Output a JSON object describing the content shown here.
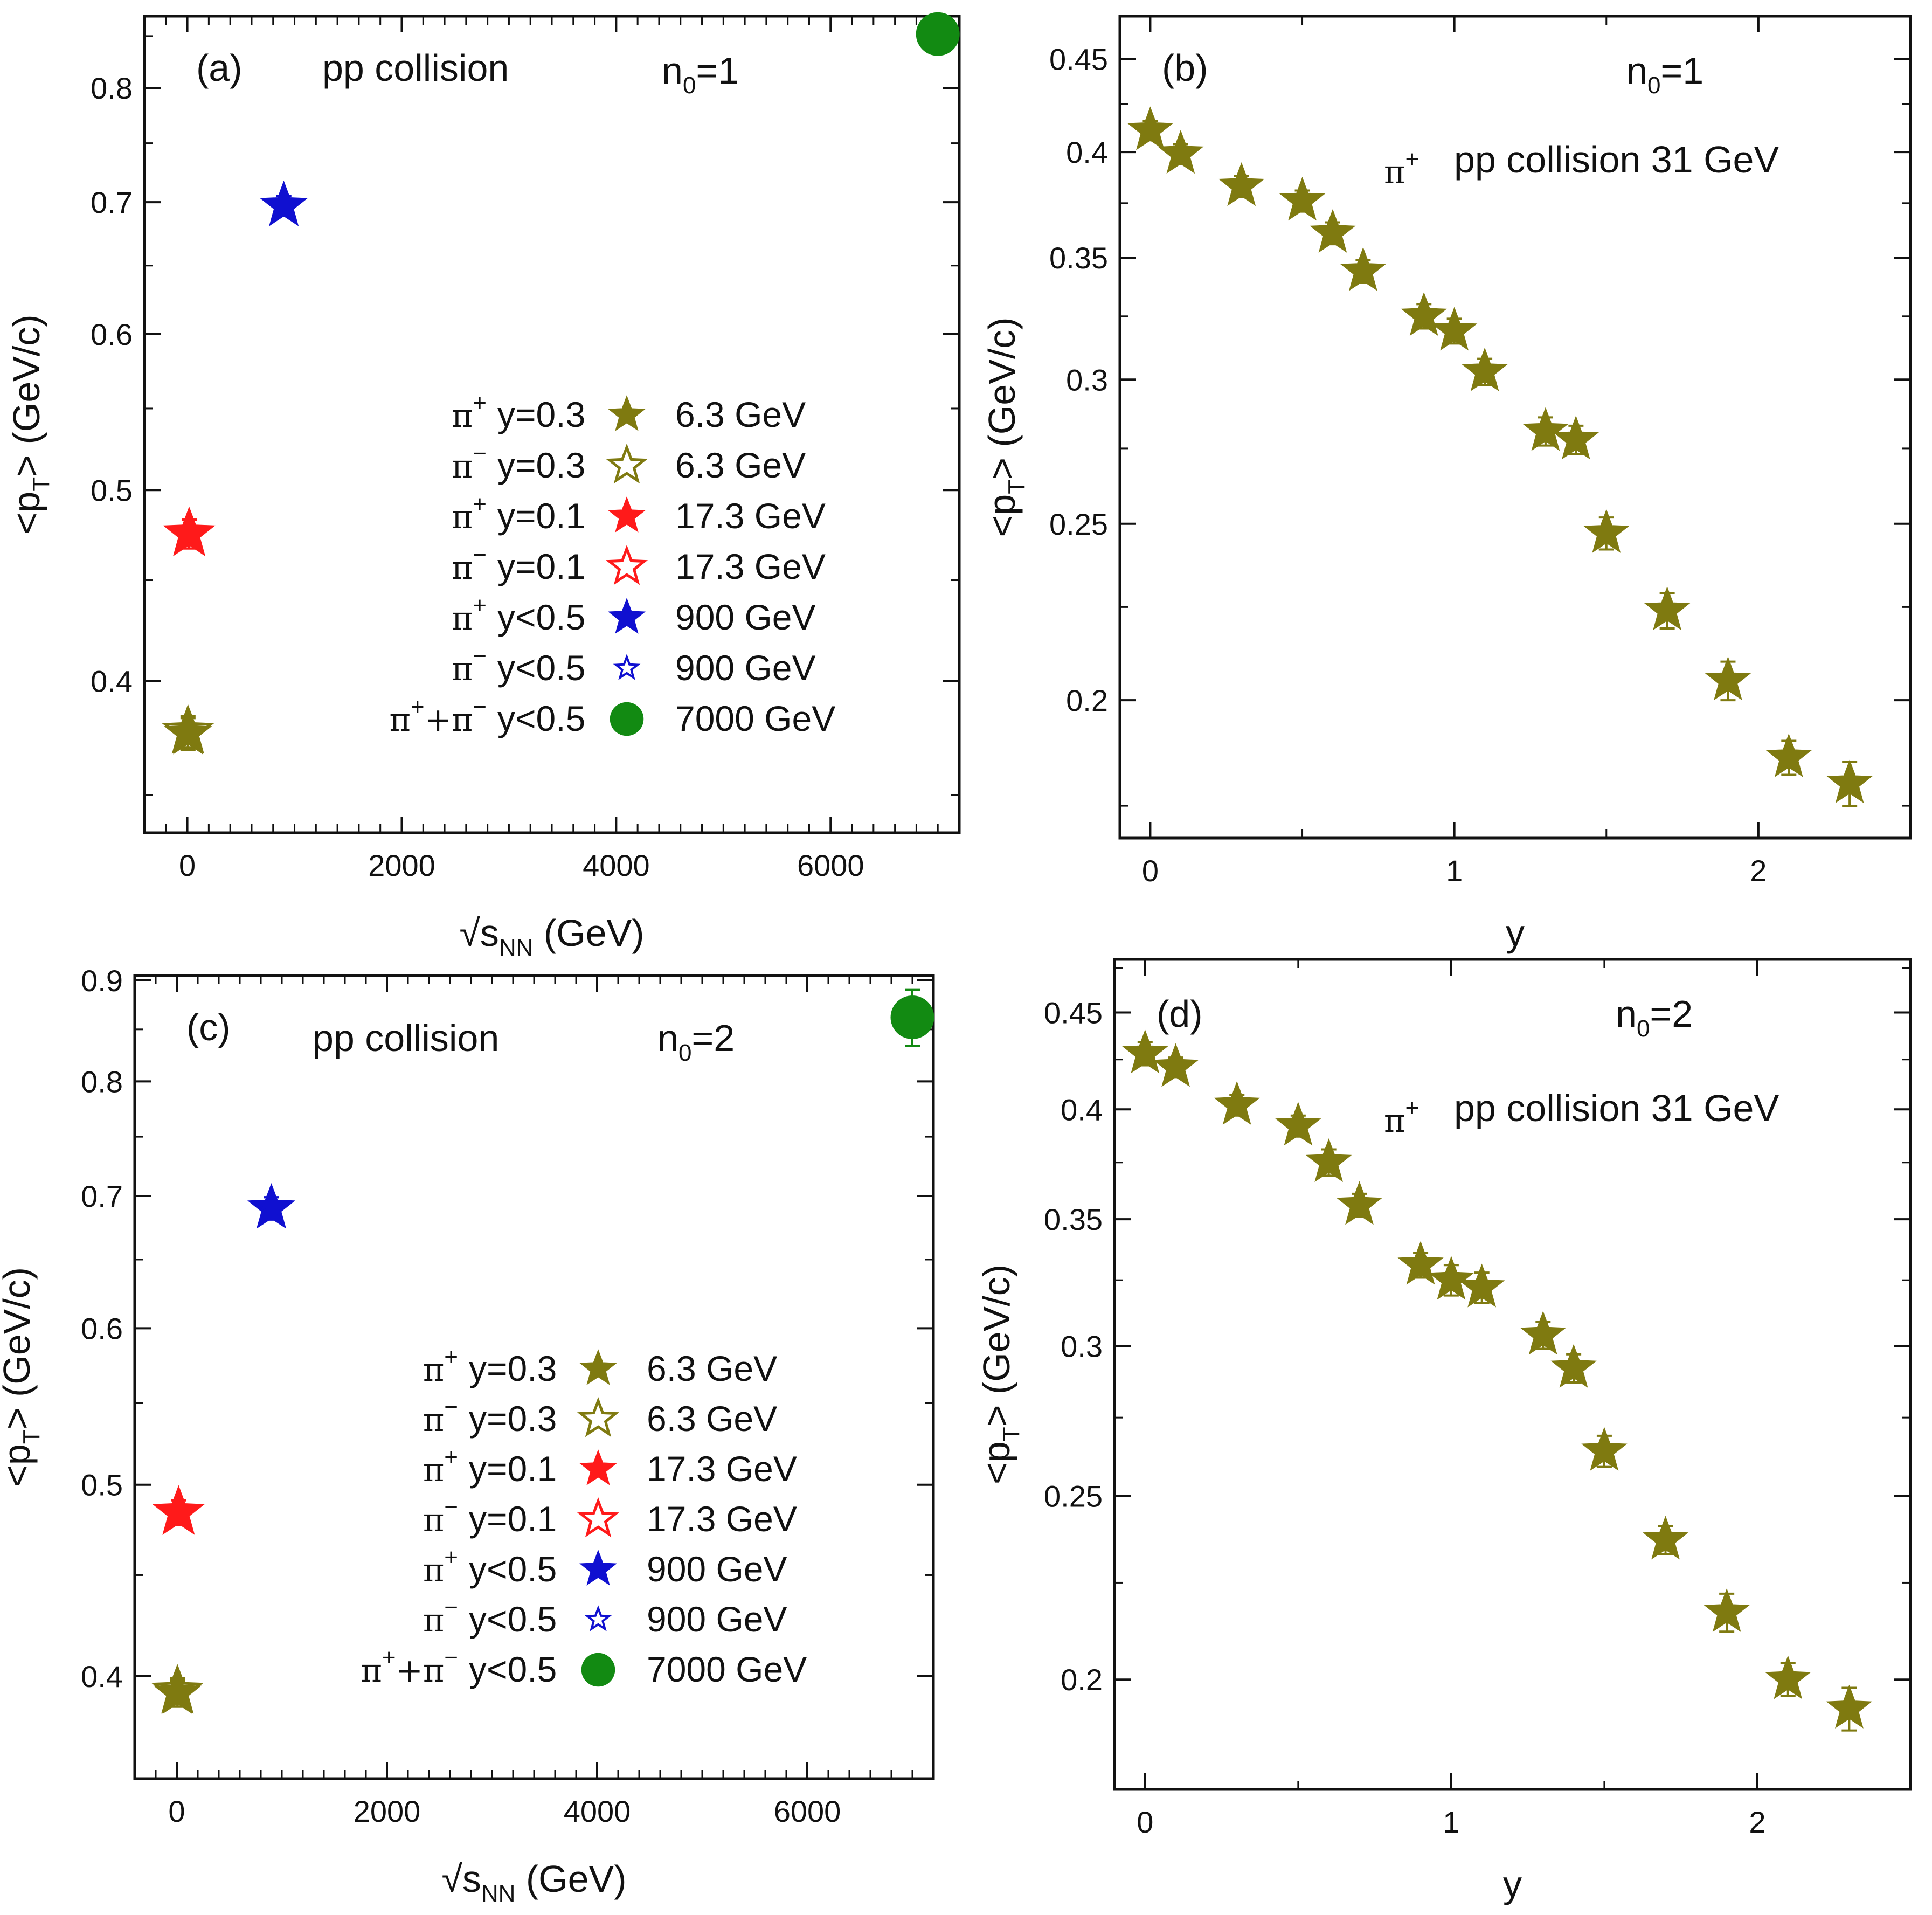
{
  "colors": {
    "olive": "#7f7a10",
    "red": "#ff1a1a",
    "blue": "#1010d0",
    "green": "#128a12",
    "frame": "#111111"
  },
  "chart_data": [
    {
      "panel": "a",
      "type": "scatter",
      "panel_label": "(a)",
      "title": "pp collision",
      "note_base": "n",
      "note_sub": "0",
      "note_tail": "=1",
      "xlabel_sqrt": "√",
      "xlabel_s": "s",
      "xlabel_sub": "NN",
      "xlabel_tail": " (GeV)",
      "ylabel_main": "<p",
      "ylabel_sub": "T",
      "ylabel_tail": "> (GeV/c)",
      "xscale": "linear",
      "yscale": "log",
      "xlim": [
        -400,
        7200
      ],
      "ylim": [
        0.335,
        0.87
      ],
      "xticks": [
        0,
        2000,
        4000,
        6000
      ],
      "xtick_labels": [
        "0",
        "2000",
        "4000",
        "6000"
      ],
      "xminor": [
        -200,
        200,
        400,
        600,
        800,
        1000,
        1200,
        1400,
        1600,
        1800,
        2200,
        2400,
        2600,
        2800,
        3000,
        3200,
        3400,
        3600,
        3800,
        4200,
        4400,
        4600,
        4800,
        5000,
        5200,
        5400,
        5600,
        5800,
        6200,
        6400,
        6600,
        6800,
        7000
      ],
      "yticks": [
        0.4,
        0.5,
        0.6,
        0.7,
        0.8
      ],
      "ytick_labels": [
        "0.4",
        "0.5",
        "0.6",
        "0.7",
        "0.8"
      ],
      "yminor": [
        0.35,
        0.45,
        0.55,
        0.65,
        0.75,
        0.85
      ],
      "points": [
        {
          "x": 6.3,
          "y": 0.376,
          "err": 0.007,
          "marker": "star-filled",
          "color": "olive"
        },
        {
          "x": 6.3,
          "y": 0.377,
          "err": 0.007,
          "marker": "star-open",
          "color": "olive"
        },
        {
          "x": 17.3,
          "y": 0.475,
          "err": 0.008,
          "marker": "star-filled",
          "color": "red"
        },
        {
          "x": 17.3,
          "y": 0.475,
          "err": 0.008,
          "marker": "star-open",
          "color": "red"
        },
        {
          "x": 900,
          "y": 0.697,
          "err": 0.008,
          "marker": "star-filled",
          "color": "blue"
        },
        {
          "x": 900,
          "y": 0.697,
          "err": 0.008,
          "marker": "star-open-small",
          "color": "blue"
        },
        {
          "x": 7000,
          "y": 0.852,
          "err": 0.018,
          "marker": "circle",
          "color": "green"
        }
      ],
      "legend": [
        {
          "particle": "π",
          "sup": "+",
          "rap": "y=0.3",
          "energy": "6.3 GeV",
          "marker": "star-filled",
          "color": "olive"
        },
        {
          "particle": "π",
          "sup": "−",
          "rap": "y=0.3",
          "energy": "6.3 GeV",
          "marker": "star-open",
          "color": "olive"
        },
        {
          "particle": "π",
          "sup": "+",
          "rap": "y=0.1",
          "energy": "17.3 GeV",
          "marker": "star-filled",
          "color": "red"
        },
        {
          "particle": "π",
          "sup": "−",
          "rap": "y=0.1",
          "energy": "17.3 GeV",
          "marker": "star-open",
          "color": "red"
        },
        {
          "particle": "π",
          "sup": "+",
          "rap": "y<0.5",
          "energy": "900 GeV",
          "marker": "star-filled",
          "color": "blue"
        },
        {
          "particle": "π",
          "sup": "−",
          "rap": "y<0.5",
          "energy": "900 GeV",
          "marker": "star-open-small",
          "color": "blue"
        },
        {
          "particle": "π",
          "sup": "+",
          "particle2": "+π",
          "sup2": "−",
          "rap": "y<0.5",
          "energy": "7000 GeV",
          "marker": "circle",
          "color": "green"
        }
      ]
    },
    {
      "panel": "b",
      "type": "scatter",
      "panel_label": "(b)",
      "note_base": "n",
      "note_sub": "0",
      "note_tail": "=1",
      "particle": "π",
      "particle_sup": "+",
      "subtitle": "pp collision   31 GeV",
      "xlabel": "y",
      "ylabel_main": "<p",
      "ylabel_sub": "T",
      "ylabel_tail": "> (GeV/c)",
      "xscale": "linear",
      "yscale": "log",
      "xlim": [
        -0.1,
        2.5
      ],
      "ylim": [
        0.168,
        0.475
      ],
      "xticks": [
        0,
        1,
        2
      ],
      "xtick_labels": [
        "0",
        "1",
        "2"
      ],
      "xminor": [
        0.5,
        1.5
      ],
      "yticks": [
        0.2,
        0.25,
        0.3,
        0.35,
        0.4,
        0.45
      ],
      "ytick_labels": [
        "0.2",
        "0.25",
        "0.3",
        "0.35",
        "0.4",
        "0.45"
      ],
      "yminor": [
        0.175,
        0.225,
        0.275,
        0.325,
        0.375,
        0.425
      ],
      "points": [
        {
          "x": 0.0,
          "y": 0.411,
          "err": 0.005,
          "marker": "star-filled",
          "color": "olive"
        },
        {
          "x": 0.1,
          "y": 0.399,
          "err": 0.005,
          "marker": "star-filled",
          "color": "olive"
        },
        {
          "x": 0.3,
          "y": 0.383,
          "err": 0.005,
          "marker": "star-filled",
          "color": "olive"
        },
        {
          "x": 0.5,
          "y": 0.376,
          "err": 0.005,
          "marker": "star-filled",
          "color": "olive"
        },
        {
          "x": 0.6,
          "y": 0.361,
          "err": 0.005,
          "marker": "star-filled",
          "color": "olive"
        },
        {
          "x": 0.7,
          "y": 0.344,
          "err": 0.005,
          "marker": "star-filled",
          "color": "olive"
        },
        {
          "x": 0.9,
          "y": 0.325,
          "err": 0.005,
          "marker": "star-filled",
          "color": "olive"
        },
        {
          "x": 1.0,
          "y": 0.319,
          "err": 0.005,
          "marker": "star-filled",
          "color": "olive"
        },
        {
          "x": 1.1,
          "y": 0.303,
          "err": 0.005,
          "marker": "star-filled",
          "color": "olive"
        },
        {
          "x": 1.3,
          "y": 0.281,
          "err": 0.005,
          "marker": "star-filled",
          "color": "olive"
        },
        {
          "x": 1.4,
          "y": 0.278,
          "err": 0.005,
          "marker": "star-filled",
          "color": "olive"
        },
        {
          "x": 1.5,
          "y": 0.247,
          "err": 0.005,
          "marker": "star-filled",
          "color": "olive"
        },
        {
          "x": 1.7,
          "y": 0.224,
          "err": 0.005,
          "marker": "star-filled",
          "color": "olive"
        },
        {
          "x": 1.9,
          "y": 0.205,
          "err": 0.005,
          "marker": "star-filled",
          "color": "olive"
        },
        {
          "x": 2.1,
          "y": 0.186,
          "err": 0.004,
          "marker": "star-filled",
          "color": "olive"
        },
        {
          "x": 2.3,
          "y": 0.18,
          "err": 0.005,
          "marker": "star-filled",
          "color": "olive"
        }
      ]
    },
    {
      "panel": "c",
      "type": "scatter",
      "panel_label": "(c)",
      "title": "pp collision",
      "note_base": "n",
      "note_sub": "0",
      "note_tail": "=2",
      "xlabel_sqrt": "√",
      "xlabel_s": "s",
      "xlabel_sub": "NN",
      "xlabel_tail": " (GeV)",
      "ylabel_main": "<p",
      "ylabel_sub": "T",
      "ylabel_tail": "> (GeV/c)",
      "xscale": "linear",
      "yscale": "log",
      "xlim": [
        -400,
        7200
      ],
      "ylim": [
        0.355,
        0.905
      ],
      "xticks": [
        0,
        2000,
        4000,
        6000
      ],
      "xtick_labels": [
        "0",
        "2000",
        "4000",
        "6000"
      ],
      "xminor": [
        -200,
        200,
        400,
        600,
        800,
        1000,
        1200,
        1400,
        1600,
        1800,
        2200,
        2400,
        2600,
        2800,
        3000,
        3200,
        3400,
        3600,
        3800,
        4200,
        4400,
        4600,
        4800,
        5000,
        5200,
        5400,
        5600,
        5800,
        6200,
        6400,
        6600,
        6800,
        7000
      ],
      "yticks": [
        0.4,
        0.5,
        0.6,
        0.7,
        0.8,
        0.9
      ],
      "ytick_labels": [
        "0.4",
        "0.5",
        "0.6",
        "0.7",
        "0.8",
        "0.9"
      ],
      "yminor": [
        0.45,
        0.55,
        0.65,
        0.75,
        0.85
      ],
      "points": [
        {
          "x": 6.3,
          "y": 0.392,
          "err": 0.006,
          "marker": "star-filled",
          "color": "olive"
        },
        {
          "x": 6.3,
          "y": 0.393,
          "err": 0.006,
          "marker": "star-open",
          "color": "olive"
        },
        {
          "x": 17.3,
          "y": 0.484,
          "err": 0.007,
          "marker": "star-filled",
          "color": "red"
        },
        {
          "x": 17.3,
          "y": 0.484,
          "err": 0.007,
          "marker": "star-open",
          "color": "red"
        },
        {
          "x": 900,
          "y": 0.69,
          "err": 0.009,
          "marker": "star-filled",
          "color": "blue"
        },
        {
          "x": 900,
          "y": 0.69,
          "err": 0.009,
          "marker": "star-open-small",
          "color": "blue"
        },
        {
          "x": 7000,
          "y": 0.862,
          "err": 0.028,
          "marker": "circle",
          "color": "green"
        }
      ],
      "legend": [
        {
          "particle": "π",
          "sup": "+",
          "rap": "y=0.3",
          "energy": "6.3 GeV",
          "marker": "star-filled",
          "color": "olive"
        },
        {
          "particle": "π",
          "sup": "−",
          "rap": "y=0.3",
          "energy": "6.3 GeV",
          "marker": "star-open",
          "color": "olive"
        },
        {
          "particle": "π",
          "sup": "+",
          "rap": "y=0.1",
          "energy": "17.3 GeV",
          "marker": "star-filled",
          "color": "red"
        },
        {
          "particle": "π",
          "sup": "−",
          "rap": "y=0.1",
          "energy": "17.3 GeV",
          "marker": "star-open",
          "color": "red"
        },
        {
          "particle": "π",
          "sup": "+",
          "rap": "y<0.5",
          "energy": "900 GeV",
          "marker": "star-filled",
          "color": "blue"
        },
        {
          "particle": "π",
          "sup": "−",
          "rap": "y<0.5",
          "energy": "900 GeV",
          "marker": "star-open-small",
          "color": "blue"
        },
        {
          "particle": "π",
          "sup": "+",
          "particle2": "+π",
          "sup2": "−",
          "rap": "y<0.5",
          "energy": "7000 GeV",
          "marker": "circle",
          "color": "green"
        }
      ]
    },
    {
      "panel": "d",
      "type": "scatter",
      "panel_label": "(d)",
      "note_base": "n",
      "note_sub": "0",
      "note_tail": "=2",
      "particle": "π",
      "particle_sup": "+",
      "subtitle": "pp collision   31 GeV",
      "xlabel": "y",
      "ylabel_main": "<p",
      "ylabel_sub": "T",
      "ylabel_tail": "> (GeV/c)",
      "xscale": "linear",
      "yscale": "log",
      "xlim": [
        -0.1,
        2.5
      ],
      "ylim": [
        0.175,
        0.48
      ],
      "xticks": [
        0,
        1,
        2
      ],
      "xtick_labels": [
        "0",
        "1",
        "2"
      ],
      "xminor": [
        0.5,
        1.5
      ],
      "yticks": [
        0.2,
        0.25,
        0.3,
        0.35,
        0.4,
        0.45
      ],
      "ytick_labels": [
        "0.2",
        "0.25",
        "0.3",
        "0.35",
        "0.4",
        "0.45"
      ],
      "yminor": [
        0.175,
        0.225,
        0.275,
        0.325,
        0.375,
        0.425,
        0.475
      ],
      "points": [
        {
          "x": 0.0,
          "y": 0.428,
          "err": 0.006,
          "marker": "star-filled",
          "color": "olive"
        },
        {
          "x": 0.1,
          "y": 0.421,
          "err": 0.005,
          "marker": "star-filled",
          "color": "olive"
        },
        {
          "x": 0.3,
          "y": 0.402,
          "err": 0.005,
          "marker": "star-filled",
          "color": "olive"
        },
        {
          "x": 0.5,
          "y": 0.392,
          "err": 0.005,
          "marker": "star-filled",
          "color": "olive"
        },
        {
          "x": 0.6,
          "y": 0.375,
          "err": 0.006,
          "marker": "star-filled",
          "color": "olive"
        },
        {
          "x": 0.7,
          "y": 0.356,
          "err": 0.005,
          "marker": "star-filled",
          "color": "olive"
        },
        {
          "x": 0.9,
          "y": 0.331,
          "err": 0.005,
          "marker": "star-filled",
          "color": "olive"
        },
        {
          "x": 1.0,
          "y": 0.325,
          "err": 0.006,
          "marker": "star-filled",
          "color": "olive"
        },
        {
          "x": 1.1,
          "y": 0.322,
          "err": 0.006,
          "marker": "star-filled",
          "color": "olive"
        },
        {
          "x": 1.3,
          "y": 0.304,
          "err": 0.005,
          "marker": "star-filled",
          "color": "olive"
        },
        {
          "x": 1.4,
          "y": 0.292,
          "err": 0.005,
          "marker": "star-filled",
          "color": "olive"
        },
        {
          "x": 1.5,
          "y": 0.264,
          "err": 0.005,
          "marker": "star-filled",
          "color": "olive"
        },
        {
          "x": 1.7,
          "y": 0.237,
          "err": 0.004,
          "marker": "star-filled",
          "color": "olive"
        },
        {
          "x": 1.9,
          "y": 0.217,
          "err": 0.005,
          "marker": "star-filled",
          "color": "olive"
        },
        {
          "x": 2.1,
          "y": 0.2,
          "err": 0.004,
          "marker": "star-filled",
          "color": "olive"
        },
        {
          "x": 2.3,
          "y": 0.193,
          "err": 0.005,
          "marker": "star-filled",
          "color": "olive"
        }
      ]
    }
  ]
}
